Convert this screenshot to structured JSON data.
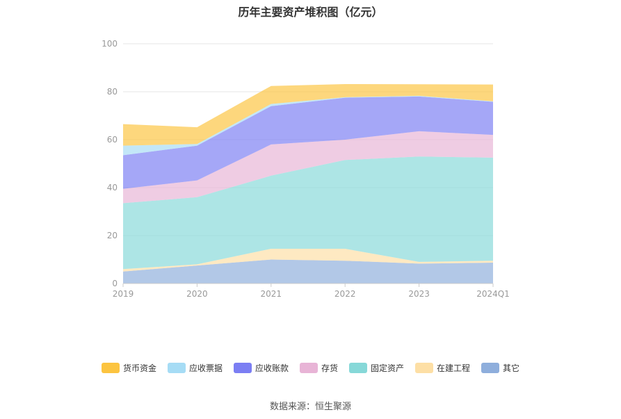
{
  "source_label": "数据来源：恒生聚源",
  "chart_data": {
    "type": "area",
    "stacked": true,
    "title": "历年主要资产堆积图（亿元）",
    "categories": [
      "2019",
      "2020",
      "2021",
      "2022",
      "2023",
      "2024Q1"
    ],
    "ylim": [
      0,
      100
    ],
    "yticks": [
      0,
      20,
      40,
      60,
      80,
      100
    ],
    "grid": true,
    "legend_position": "bottom",
    "series": [
      {
        "name": "其它",
        "color": "#8eaedc",
        "values": [
          5.0,
          7.5,
          10.0,
          9.5,
          8.3,
          8.7
        ]
      },
      {
        "name": "在建工程",
        "color": "#fddfa5",
        "values": [
          1.0,
          0.5,
          4.5,
          5.0,
          0.7,
          0.8
        ]
      },
      {
        "name": "固定资产",
        "color": "#86d8d8",
        "values": [
          27.5,
          28.0,
          30.5,
          37.0,
          44.0,
          43.0
        ]
      },
      {
        "name": "存货",
        "color": "#e8b4d6",
        "values": [
          6.0,
          7.0,
          13.0,
          8.5,
          10.5,
          9.5
        ]
      },
      {
        "name": "应收账款",
        "color": "#7b7ef3",
        "values": [
          14.0,
          14.5,
          16.0,
          17.5,
          14.5,
          13.8
        ]
      },
      {
        "name": "应收票据",
        "color": "#a6dcf5",
        "values": [
          4.0,
          0.7,
          0.9,
          0.2,
          0.3,
          0.2
        ]
      },
      {
        "name": "货币资金",
        "color": "#fcc440",
        "values": [
          9.0,
          7.0,
          7.5,
          5.5,
          4.8,
          7.0
        ]
      }
    ],
    "legend_order": [
      "货币资金",
      "应收票据",
      "应收账款",
      "存货",
      "固定资产",
      "在建工程",
      "其它"
    ]
  }
}
